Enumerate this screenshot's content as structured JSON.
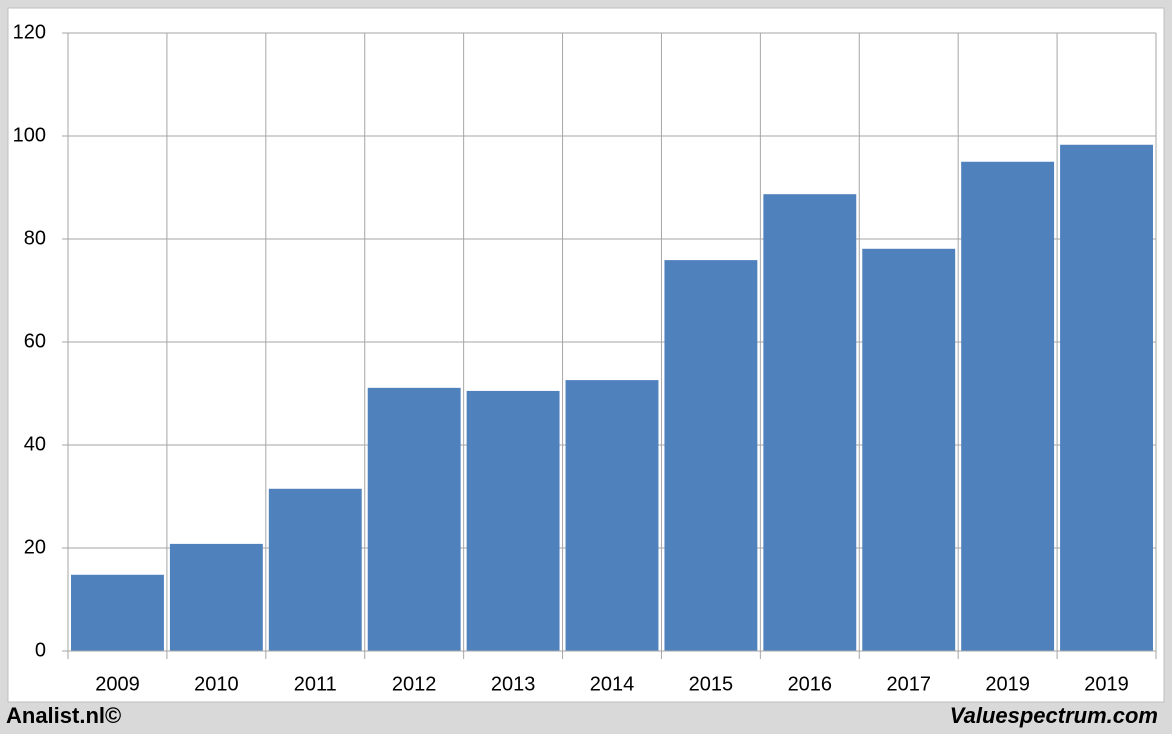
{
  "chart_data": {
    "type": "bar",
    "categories": [
      "2009",
      "2010",
      "2011",
      "2012",
      "2013",
      "2014",
      "2015",
      "2016",
      "2017",
      "2019",
      "2019"
    ],
    "values": [
      14.8,
      20.8,
      31.5,
      51.1,
      50.5,
      52.6,
      75.9,
      88.7,
      78.1,
      95.0,
      98.3
    ],
    "color": "#4f81bd",
    "ylim": [
      0,
      120
    ],
    "yticks": [
      0,
      20,
      40,
      60,
      80,
      100,
      120
    ],
    "grid": true,
    "footer_left": "Analist.nl©",
    "footer_right": "Valuespectrum.com"
  }
}
